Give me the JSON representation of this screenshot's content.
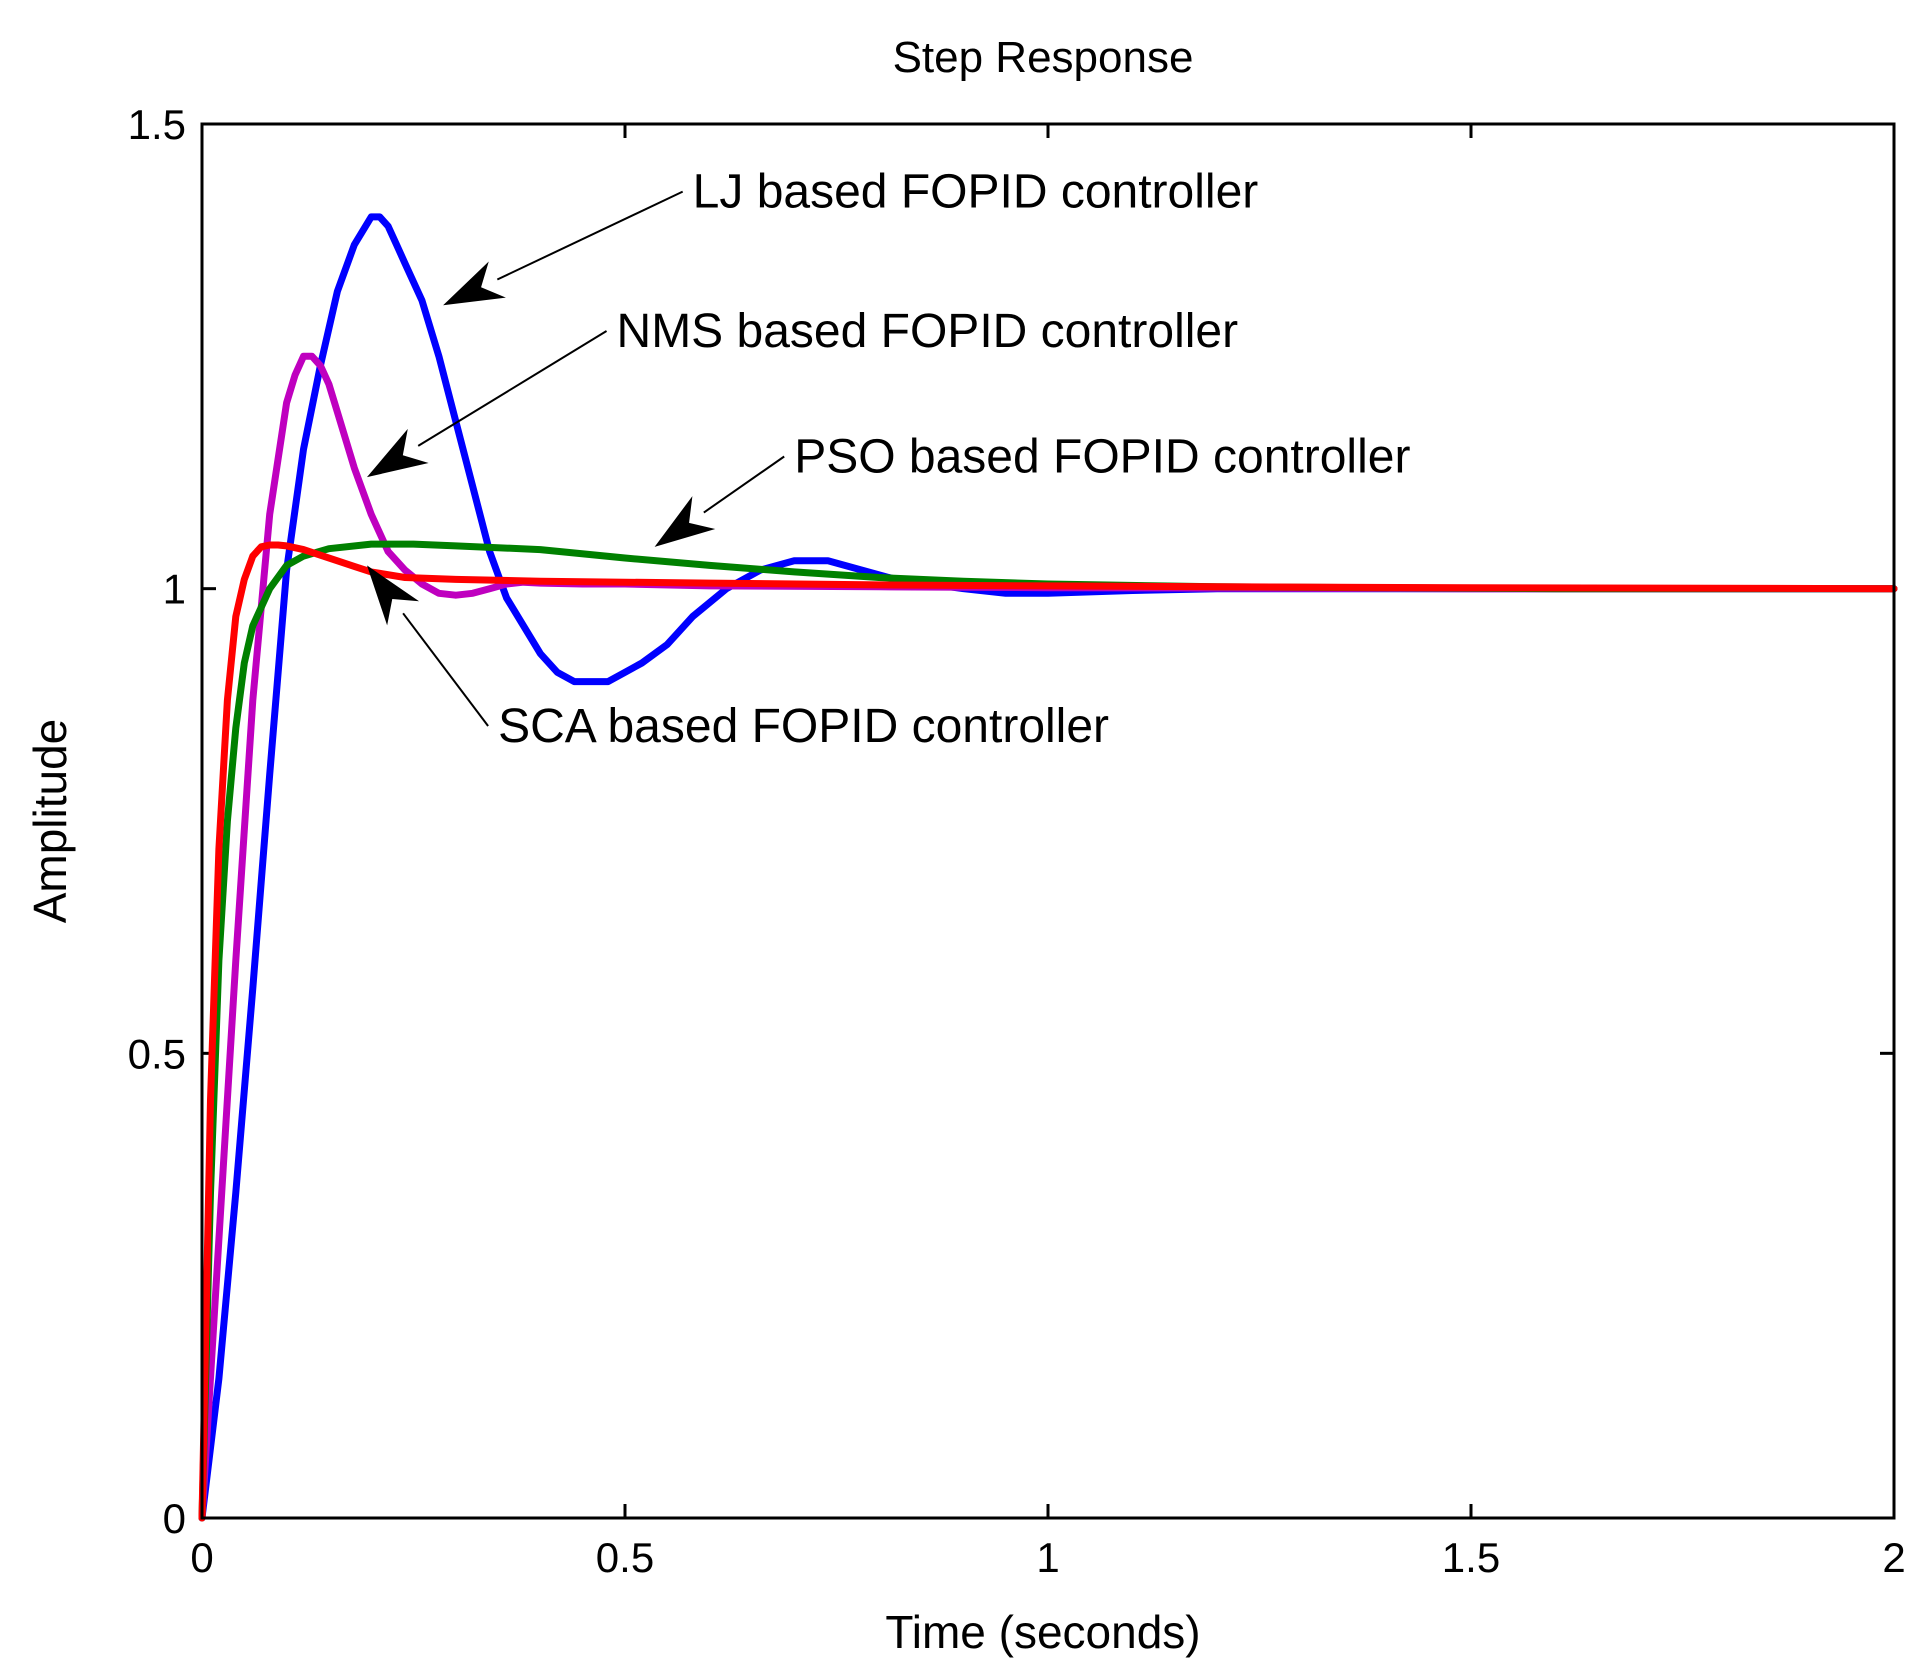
{
  "chart_data": {
    "type": "line",
    "title": "Step Response",
    "xlabel": "Time (seconds)",
    "ylabel": "Amplitude",
    "xlim": [
      0,
      2
    ],
    "ylim": [
      0,
      1.5
    ],
    "xticks": [
      0,
      0.5,
      1,
      1.5,
      2
    ],
    "xtick_labels": [
      "0",
      "0.5",
      "1",
      "1.5",
      "2"
    ],
    "yticks": [
      0,
      0.5,
      1,
      1.5
    ],
    "ytick_labels": [
      "0",
      "0.5",
      "1",
      "1.5"
    ],
    "grid": false,
    "series": [
      {
        "name": "LJ based FOPID controller",
        "color": "#0000ff",
        "x": [
          0,
          0.02,
          0.04,
          0.06,
          0.08,
          0.1,
          0.12,
          0.14,
          0.16,
          0.18,
          0.2,
          0.21,
          0.22,
          0.23,
          0.24,
          0.26,
          0.28,
          0.3,
          0.32,
          0.34,
          0.36,
          0.38,
          0.4,
          0.42,
          0.44,
          0.46,
          0.48,
          0.5,
          0.52,
          0.55,
          0.58,
          0.62,
          0.66,
          0.7,
          0.74,
          0.78,
          0.82,
          0.86,
          0.9,
          0.95,
          1.0,
          1.1,
          1.2,
          1.4,
          1.6,
          1.8,
          2.0
        ],
        "y": [
          0,
          0.15,
          0.35,
          0.57,
          0.8,
          1.02,
          1.15,
          1.24,
          1.32,
          1.37,
          1.4,
          1.4,
          1.39,
          1.37,
          1.35,
          1.31,
          1.25,
          1.18,
          1.11,
          1.04,
          0.99,
          0.96,
          0.93,
          0.91,
          0.9,
          0.9,
          0.9,
          0.91,
          0.92,
          0.94,
          0.97,
          1.0,
          1.02,
          1.03,
          1.03,
          1.02,
          1.01,
          1.005,
          1.0,
          0.995,
          0.995,
          0.998,
          1.0,
          1.0,
          1.0,
          1.0,
          1.0
        ]
      },
      {
        "name": "NMS based FOPID controller",
        "color": "#bf00bf",
        "x": [
          0,
          0.02,
          0.04,
          0.06,
          0.08,
          0.1,
          0.11,
          0.12,
          0.13,
          0.14,
          0.15,
          0.16,
          0.18,
          0.2,
          0.22,
          0.24,
          0.26,
          0.28,
          0.3,
          0.32,
          0.34,
          0.36,
          0.38,
          0.4,
          0.45,
          0.5,
          0.6,
          0.8,
          1.0,
          1.5,
          2.0
        ],
        "y": [
          0,
          0.3,
          0.6,
          0.88,
          1.08,
          1.2,
          1.23,
          1.25,
          1.25,
          1.24,
          1.22,
          1.19,
          1.13,
          1.08,
          1.04,
          1.02,
          1.005,
          0.995,
          0.993,
          0.995,
          1.0,
          1.005,
          1.007,
          1.006,
          1.005,
          1.005,
          1.003,
          1.002,
          1.001,
          1.0,
          1.0
        ]
      },
      {
        "name": "PSO based FOPID controller",
        "color": "#008000",
        "x": [
          0,
          0.01,
          0.02,
          0.03,
          0.04,
          0.05,
          0.06,
          0.08,
          0.1,
          0.12,
          0.15,
          0.2,
          0.25,
          0.3,
          0.4,
          0.5,
          0.6,
          0.7,
          0.8,
          0.9,
          1.0,
          1.2,
          1.4,
          1.6,
          1.8,
          2.0
        ],
        "y": [
          0,
          0.35,
          0.6,
          0.75,
          0.85,
          0.92,
          0.96,
          1.0,
          1.025,
          1.035,
          1.043,
          1.048,
          1.048,
          1.046,
          1.042,
          1.033,
          1.025,
          1.018,
          1.012,
          1.008,
          1.005,
          1.002,
          1.001,
          1.0,
          1.0,
          1.0
        ]
      },
      {
        "name": "SCA based FOPID controller",
        "color": "#ff0000",
        "x": [
          0,
          0.01,
          0.02,
          0.03,
          0.04,
          0.05,
          0.06,
          0.07,
          0.08,
          0.09,
          0.1,
          0.12,
          0.14,
          0.16,
          0.18,
          0.2,
          0.24,
          0.3,
          0.4,
          0.5,
          0.6,
          0.8,
          1.0,
          1.2,
          1.5,
          2.0
        ],
        "y": [
          0,
          0.45,
          0.72,
          0.88,
          0.97,
          1.01,
          1.035,
          1.045,
          1.047,
          1.047,
          1.046,
          1.042,
          1.036,
          1.03,
          1.024,
          1.018,
          1.012,
          1.01,
          1.008,
          1.007,
          1.006,
          1.004,
          1.003,
          1.002,
          1.001,
          1.0
        ]
      }
    ],
    "annotations": [
      {
        "text": "LJ based FOPID controller",
        "series": "LJ based FOPID controller",
        "text_at": [
          0.58,
          1.41
        ],
        "point_at": [
          0.285,
          1.305
        ]
      },
      {
        "text": "NMS based FOPID controller",
        "series": "NMS based FOPID controller",
        "text_at": [
          0.49,
          1.26
        ],
        "point_at": [
          0.195,
          1.12
        ]
      },
      {
        "text": "PSO based FOPID controller",
        "series": "PSO based FOPID controller",
        "text_at": [
          0.7,
          1.125
        ],
        "point_at": [
          0.535,
          1.045
        ]
      },
      {
        "text": "SCA based FOPID controller",
        "series": "SCA based FOPID controller",
        "text_at": [
          0.35,
          0.835
        ],
        "point_at": [
          0.195,
          1.025
        ]
      }
    ]
  }
}
